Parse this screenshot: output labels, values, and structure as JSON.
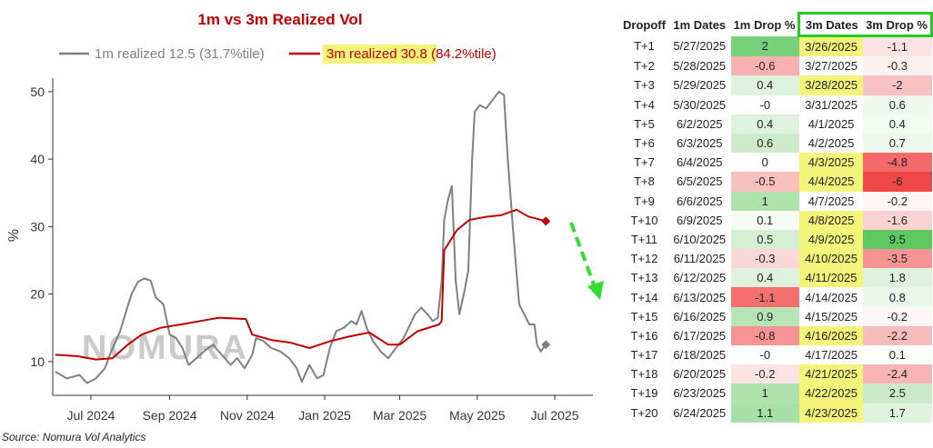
{
  "chart_data": {
    "type": "line",
    "title": "1m vs 3m Realized Vol",
    "legend": [
      {
        "prefix": "1m realized 12.5",
        "suffix": " (31.7%tile)",
        "color": "#808080"
      },
      {
        "prefix": "3m realized 30.8",
        "suffix": " (84.2%tile)",
        "color": "#c00000"
      }
    ],
    "ylabel": "%",
    "xlabel": "",
    "ylim": [
      5,
      52
    ],
    "yticks": [
      10,
      20,
      30,
      40,
      50
    ],
    "xlim": [
      "2024-06-01",
      "2025-07-31"
    ],
    "xticks": [
      {
        "date": "2024-07-01",
        "label": "Jul 2024"
      },
      {
        "date": "2024-09-01",
        "label": "Sep 2024"
      },
      {
        "date": "2024-11-01",
        "label": "Nov 2024"
      },
      {
        "date": "2025-01-01",
        "label": "Jan 2025"
      },
      {
        "date": "2025-03-01",
        "label": "Mar 2025"
      },
      {
        "date": "2025-05-01",
        "label": "May 2025"
      },
      {
        "date": "2025-07-01",
        "label": "Jul 2025"
      }
    ],
    "grid": false,
    "legend_position": "top",
    "series": [
      {
        "name": "1m realized",
        "color": "#808080",
        "points": [
          [
            "2024-06-03",
            8.5
          ],
          [
            "2024-06-12",
            7.5
          ],
          [
            "2024-06-22",
            8.0
          ],
          [
            "2024-06-28",
            6.8
          ],
          [
            "2024-07-05",
            7.5
          ],
          [
            "2024-07-12",
            9.0
          ],
          [
            "2024-07-17",
            11.5
          ],
          [
            "2024-07-24",
            14.5
          ],
          [
            "2024-07-28",
            17.0
          ],
          [
            "2024-08-02",
            20.0
          ],
          [
            "2024-08-07",
            21.8
          ],
          [
            "2024-08-12",
            22.3
          ],
          [
            "2024-08-17",
            22.0
          ],
          [
            "2024-08-21",
            19.5
          ],
          [
            "2024-08-27",
            18.5
          ],
          [
            "2024-09-01",
            14.0
          ],
          [
            "2024-09-06",
            13.5
          ],
          [
            "2024-09-11",
            12.0
          ],
          [
            "2024-09-16",
            9.5
          ],
          [
            "2024-09-22",
            10.5
          ],
          [
            "2024-09-28",
            11.5
          ],
          [
            "2024-10-05",
            12.5
          ],
          [
            "2024-10-12",
            11.0
          ],
          [
            "2024-10-19",
            9.5
          ],
          [
            "2024-10-24",
            10.5
          ],
          [
            "2024-10-30",
            9.0
          ],
          [
            "2024-11-05",
            11.0
          ],
          [
            "2024-11-08",
            13.5
          ],
          [
            "2024-11-14",
            13.0
          ],
          [
            "2024-11-20",
            12.0
          ],
          [
            "2024-11-27",
            11.5
          ],
          [
            "2024-12-04",
            10.5
          ],
          [
            "2024-12-10",
            9.0
          ],
          [
            "2024-12-14",
            7.0
          ],
          [
            "2024-12-20",
            9.5
          ],
          [
            "2024-12-26",
            7.5
          ],
          [
            "2024-12-31",
            8.0
          ],
          [
            "2025-01-05",
            12.0
          ],
          [
            "2025-01-10",
            14.5
          ],
          [
            "2025-01-16",
            15.0
          ],
          [
            "2025-01-22",
            16.0
          ],
          [
            "2025-01-26",
            15.5
          ],
          [
            "2025-01-30",
            17.5
          ],
          [
            "2025-02-03",
            15.0
          ],
          [
            "2025-02-08",
            13.0
          ],
          [
            "2025-02-14",
            11.5
          ],
          [
            "2025-02-20",
            10.5
          ],
          [
            "2025-02-26",
            12.0
          ],
          [
            "2025-03-04",
            13.5
          ],
          [
            "2025-03-08",
            15.0
          ],
          [
            "2025-03-13",
            17.0
          ],
          [
            "2025-03-18",
            18.0
          ],
          [
            "2025-03-23",
            17.0
          ],
          [
            "2025-03-27",
            16.0
          ],
          [
            "2025-03-31",
            16.5
          ],
          [
            "2025-04-03",
            22.0
          ],
          [
            "2025-04-05",
            31.0
          ],
          [
            "2025-04-08",
            34.0
          ],
          [
            "2025-04-11",
            36.0
          ],
          [
            "2025-04-14",
            22.0
          ],
          [
            "2025-04-17",
            17.0
          ],
          [
            "2025-04-21",
            20.5
          ],
          [
            "2025-04-24",
            23.5
          ],
          [
            "2025-04-27",
            40.0
          ],
          [
            "2025-04-29",
            47.0
          ],
          [
            "2025-05-03",
            48.0
          ],
          [
            "2025-05-08",
            47.5
          ],
          [
            "2025-05-14",
            49.0
          ],
          [
            "2025-05-18",
            50.0
          ],
          [
            "2025-05-22",
            49.5
          ],
          [
            "2025-05-25",
            40.0
          ],
          [
            "2025-05-29",
            30.0
          ],
          [
            "2025-06-01",
            23.0
          ],
          [
            "2025-06-03",
            18.5
          ],
          [
            "2025-06-07",
            17.0
          ],
          [
            "2025-06-11",
            15.5
          ],
          [
            "2025-06-15",
            15.5
          ],
          [
            "2025-06-17",
            12.5
          ],
          [
            "2025-06-20",
            11.5
          ],
          [
            "2025-06-24",
            12.5
          ]
        ]
      },
      {
        "name": "3m realized",
        "color": "#c00000",
        "points": [
          [
            "2024-06-03",
            11.0
          ],
          [
            "2024-06-20",
            10.8
          ],
          [
            "2024-07-05",
            10.3
          ],
          [
            "2024-07-18",
            10.5
          ],
          [
            "2024-07-30",
            12.5
          ],
          [
            "2024-08-10",
            14.0
          ],
          [
            "2024-08-25",
            15.0
          ],
          [
            "2024-09-10",
            15.5
          ],
          [
            "2024-09-25",
            16.0
          ],
          [
            "2024-10-10",
            16.5
          ],
          [
            "2024-10-31",
            16.3
          ],
          [
            "2024-11-05",
            14.0
          ],
          [
            "2024-11-20",
            13.2
          ],
          [
            "2024-12-05",
            12.8
          ],
          [
            "2024-12-20",
            12.0
          ],
          [
            "2025-01-05",
            13.0
          ],
          [
            "2025-01-20",
            13.7
          ],
          [
            "2025-02-05",
            14.3
          ],
          [
            "2025-02-20",
            12.5
          ],
          [
            "2025-03-01",
            12.5
          ],
          [
            "2025-03-15",
            14.5
          ],
          [
            "2025-04-01",
            15.5
          ],
          [
            "2025-04-03",
            16.0
          ],
          [
            "2025-04-05",
            26.5
          ],
          [
            "2025-04-15",
            29.5
          ],
          [
            "2025-04-25",
            31.0
          ],
          [
            "2025-05-10",
            31.5
          ],
          [
            "2025-05-20",
            31.7
          ],
          [
            "2025-06-01",
            32.5
          ],
          [
            "2025-06-10",
            31.5
          ],
          [
            "2025-06-24",
            30.8
          ]
        ]
      }
    ],
    "end_markers": [
      {
        "series": "1m realized",
        "date": "2025-06-24",
        "value": 12.5
      },
      {
        "series": "3m realized",
        "date": "2025-06-24",
        "value": 30.8
      }
    ]
  },
  "watermark": "NOMURA",
  "source_note": "Source: Nomura Vol Analytics",
  "table": {
    "headers": [
      "Dropoff",
      "1m Dates",
      "1m Drop %",
      "3m Dates",
      "3m Drop %"
    ],
    "rows": [
      {
        "dropoff": "T+1",
        "d1": "5/27/2025",
        "v1": "2",
        "d3": "3/26/2025",
        "v3": "-1.1",
        "c1": "#77d17a",
        "h3": true,
        "c3": "#fde3e3"
      },
      {
        "dropoff": "T+2",
        "d1": "5/28/2025",
        "v1": "-0.6",
        "d3": "3/27/2025",
        "v3": "-0.3",
        "c1": "#f8b0b0",
        "h3": false,
        "c3": "#fdf2f2"
      },
      {
        "dropoff": "T+3",
        "d1": "5/29/2025",
        "v1": "0.4",
        "d3": "3/28/2025",
        "v3": "-2",
        "c1": "#dff2de",
        "h3": true,
        "c3": "#f9c2c2"
      },
      {
        "dropoff": "T+4",
        "d1": "5/30/2025",
        "v1": "-0",
        "d3": "3/31/2025",
        "v3": "0.6",
        "c1": "#ffffff",
        "h3": false,
        "c3": "#f0f9ef"
      },
      {
        "dropoff": "T+5",
        "d1": "6/2/2025",
        "v1": "0.4",
        "d3": "4/1/2025",
        "v3": "0.4",
        "c1": "#dff2de",
        "h3": false,
        "c3": "#f4fbf3"
      },
      {
        "dropoff": "T+6",
        "d1": "6/3/2025",
        "v1": "0.6",
        "d3": "4/2/2025",
        "v3": "0.7",
        "c1": "#cdebcb",
        "h3": false,
        "c3": "#eef8ed"
      },
      {
        "dropoff": "T+7",
        "d1": "6/4/2025",
        "v1": "0",
        "d3": "4/3/2025",
        "v3": "-4.8",
        "c1": "#ffffff",
        "h3": true,
        "c3": "#f56a6a"
      },
      {
        "dropoff": "T+8",
        "d1": "6/5/2025",
        "v1": "-0.5",
        "d3": "4/4/2025",
        "v3": "-6",
        "c1": "#f9c0c0",
        "h3": true,
        "c3": "#f04848"
      },
      {
        "dropoff": "T+9",
        "d1": "6/6/2025",
        "v1": "1",
        "d3": "4/7/2025",
        "v3": "-0.2",
        "c1": "#b0e2ae",
        "h3": false,
        "c3": "#fef5f5"
      },
      {
        "dropoff": "T+10",
        "d1": "6/9/2025",
        "v1": "0.1",
        "d3": "4/8/2025",
        "v3": "-1.6",
        "c1": "#f5fbf4",
        "h3": true,
        "c3": "#fbd2d2"
      },
      {
        "dropoff": "T+11",
        "d1": "6/10/2025",
        "v1": "0.5",
        "d3": "4/9/2025",
        "v3": "9.5",
        "c1": "#d6efd4",
        "h3": true,
        "c3": "#5cc85f"
      },
      {
        "dropoff": "T+12",
        "d1": "6/11/2025",
        "v1": "-0.3",
        "d3": "4/10/2025",
        "v3": "-3.5",
        "c1": "#fbd8d8",
        "h3": true,
        "c3": "#f69393"
      },
      {
        "dropoff": "T+13",
        "d1": "6/12/2025",
        "v1": "0.4",
        "d3": "4/11/2025",
        "v3": "1.8",
        "c1": "#dff2de",
        "h3": true,
        "c3": "#dff2de"
      },
      {
        "dropoff": "T+14",
        "d1": "6/13/2025",
        "v1": "-1.1",
        "d3": "4/14/2025",
        "v3": "0.8",
        "c1": "#f47070",
        "h3": false,
        "c3": "#eaf7e9"
      },
      {
        "dropoff": "T+15",
        "d1": "6/16/2025",
        "v1": "0.9",
        "d3": "4/15/2025",
        "v3": "-0.2",
        "c1": "#b8e5b6",
        "h3": false,
        "c3": "#fef5f5"
      },
      {
        "dropoff": "T+16",
        "d1": "6/17/2025",
        "v1": "-0.8",
        "d3": "4/16/2025",
        "v3": "-2.2",
        "c1": "#f69494",
        "h3": true,
        "c3": "#f9bcbc"
      },
      {
        "dropoff": "T+17",
        "d1": "6/18/2025",
        "v1": "-0",
        "d3": "4/17/2025",
        "v3": "0.1",
        "c1": "#ffffff",
        "h3": false,
        "c3": "#fafdfa"
      },
      {
        "dropoff": "T+18",
        "d1": "6/20/2025",
        "v1": "-0.2",
        "d3": "4/21/2025",
        "v3": "-2.4",
        "c1": "#fce4e4",
        "h3": true,
        "c3": "#f8b5b5"
      },
      {
        "dropoff": "T+19",
        "d1": "6/23/2025",
        "v1": "1",
        "d3": "4/22/2025",
        "v3": "2.5",
        "c1": "#b0e2ae",
        "h3": true,
        "c3": "#cbeac9"
      },
      {
        "dropoff": "T+20",
        "d1": "6/24/2025",
        "v1": "1.1",
        "d3": "4/23/2025",
        "v3": "1.7",
        "c1": "#a8dfa6",
        "h3": true,
        "c3": "#e0f3df"
      }
    ]
  },
  "colors": {
    "highlight_yellow": "#f2f57a",
    "green_box": "#22cc22",
    "arrow_green": "#33dd33",
    "title_red": "#c00000"
  }
}
